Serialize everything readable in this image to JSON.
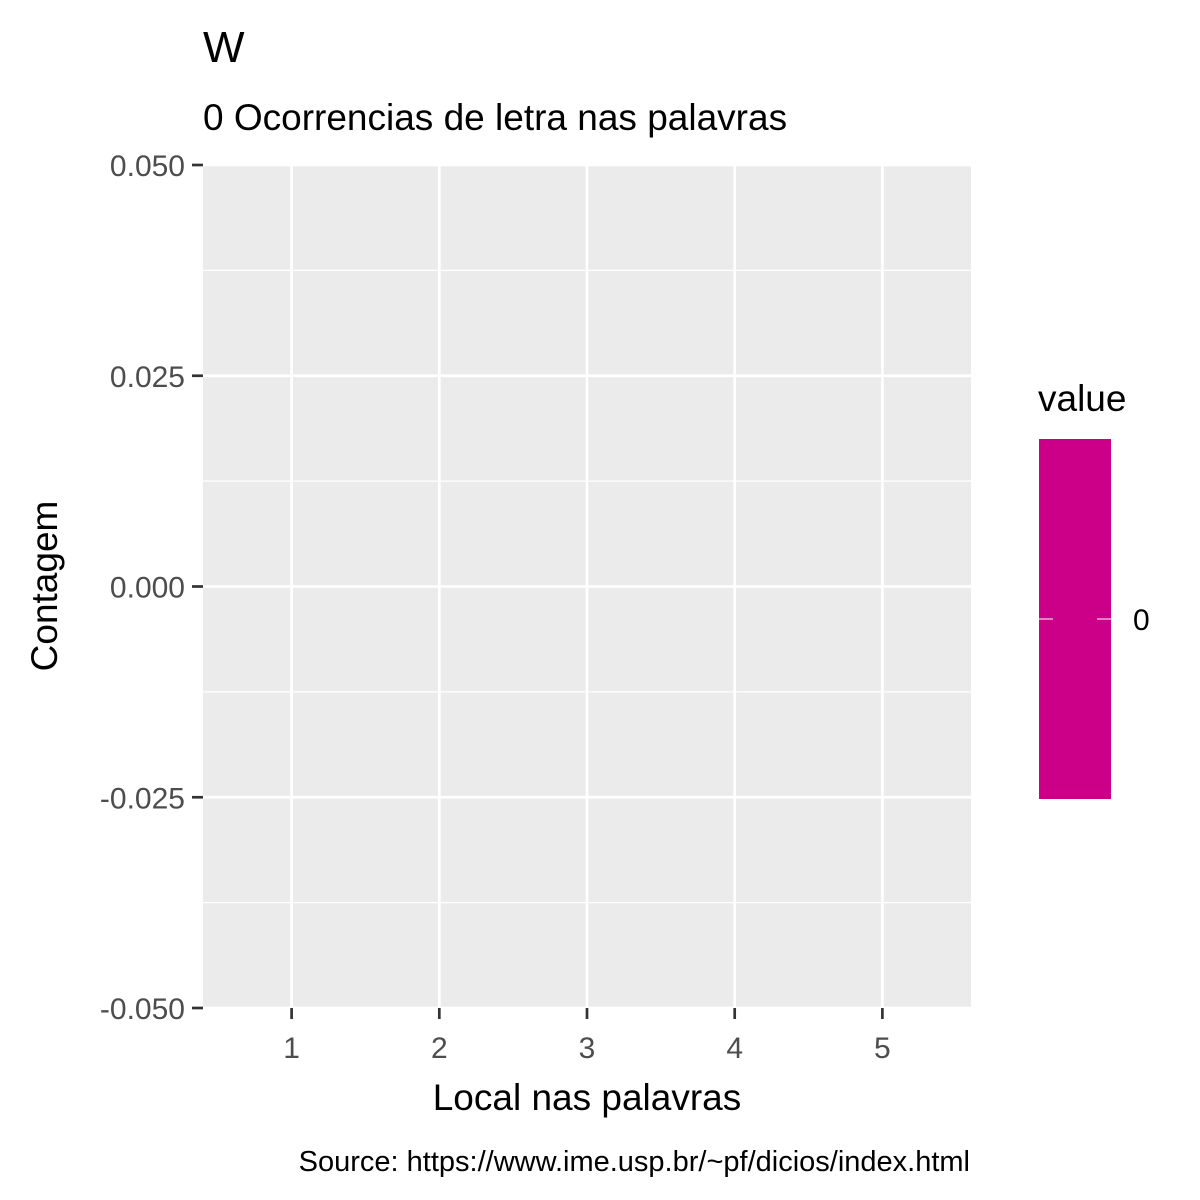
{
  "chart_data": {
    "type": "bar",
    "title": "W",
    "subtitle": "0 Ocorrencias de letra nas palavras",
    "xlabel": "Local nas palavras",
    "ylabel": "Contagem",
    "caption": "Source: https://www.ime.usp.br/~pf/dicios/index.html",
    "categories": [
      1,
      2,
      3,
      4,
      5
    ],
    "values": [
      0,
      0,
      0,
      0,
      0
    ],
    "xlim": [
      0.4,
      5.6
    ],
    "ylim": [
      -0.05,
      0.05
    ],
    "y_ticks": [
      -0.05,
      -0.025,
      0,
      0.025,
      0.05
    ],
    "y_tick_labels": [
      "-0.050",
      "-0.025",
      "0.000",
      "0.025",
      "0.050"
    ],
    "x_ticks": [
      1,
      2,
      3,
      4,
      5
    ],
    "x_tick_labels": [
      "1",
      "2",
      "3",
      "4",
      "5"
    ],
    "grid": true,
    "legend": {
      "title": "value",
      "position": "right",
      "color": "#cc0088",
      "breaks": [
        0
      ],
      "labels": [
        "0"
      ]
    },
    "colors": {
      "panel_bg": "#ebebeb",
      "grid": "#ffffff",
      "axis_text": "#4d4d4d",
      "text": "#000000"
    }
  }
}
